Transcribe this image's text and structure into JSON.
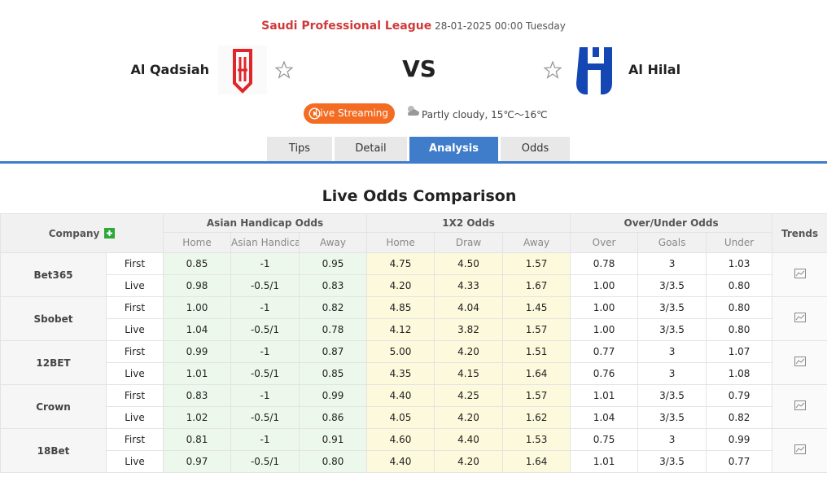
{
  "header": {
    "league": "Saudi Professional League",
    "datetime": "28-01-2025 00:00 Tuesday",
    "home_team": "Al Qadsiah",
    "away_team": "Al Hilal",
    "vs": "VS",
    "live_button": "Live Streaming",
    "weather": "Partly cloudy, 15℃～16℃"
  },
  "tabs": [
    "Tips",
    "Detail",
    "Analysis",
    "Odds"
  ],
  "active_tab": 2,
  "section_title": "Live Odds Comparison",
  "table": {
    "company_header": "Company",
    "trends_header": "Trends",
    "groups": [
      "Asian Handicap Odds",
      "1X2 Odds",
      "Over/Under Odds"
    ],
    "subheaders": [
      "Home",
      "Asian Handicap",
      "Away",
      "Home",
      "Draw",
      "Away",
      "Over",
      "Goals",
      "Under"
    ],
    "rows": [
      {
        "company": "Bet365",
        "lines": [
          {
            "type": "First",
            "values": [
              "0.85",
              "-1",
              "0.95",
              "4.75",
              "4.50",
              "1.57",
              "0.78",
              "3",
              "1.03"
            ]
          },
          {
            "type": "Live",
            "values": [
              "0.98",
              "-0.5/1",
              "0.83",
              "4.20",
              "4.33",
              "1.67",
              "1.00",
              "3/3.5",
              "0.80"
            ]
          }
        ]
      },
      {
        "company": "Sbobet",
        "lines": [
          {
            "type": "First",
            "values": [
              "1.00",
              "-1",
              "0.82",
              "4.85",
              "4.04",
              "1.45",
              "1.00",
              "3/3.5",
              "0.80"
            ]
          },
          {
            "type": "Live",
            "values": [
              "1.04",
              "-0.5/1",
              "0.78",
              "4.12",
              "3.82",
              "1.57",
              "1.00",
              "3/3.5",
              "0.80"
            ]
          }
        ]
      },
      {
        "company": "12BET",
        "lines": [
          {
            "type": "First",
            "values": [
              "0.99",
              "-1",
              "0.87",
              "5.00",
              "4.20",
              "1.51",
              "0.77",
              "3",
              "1.07"
            ]
          },
          {
            "type": "Live",
            "values": [
              "1.01",
              "-0.5/1",
              "0.85",
              "4.35",
              "4.15",
              "1.64",
              "0.76",
              "3",
              "1.08"
            ]
          }
        ]
      },
      {
        "company": "Crown",
        "lines": [
          {
            "type": "First",
            "values": [
              "0.83",
              "-1",
              "0.99",
              "4.40",
              "4.25",
              "1.57",
              "1.01",
              "3/3.5",
              "0.79"
            ]
          },
          {
            "type": "Live",
            "values": [
              "1.02",
              "-0.5/1",
              "0.86",
              "4.05",
              "4.20",
              "1.62",
              "1.04",
              "3/3.5",
              "0.82"
            ]
          }
        ]
      },
      {
        "company": "18Bet",
        "lines": [
          {
            "type": "First",
            "values": [
              "0.81",
              "-1",
              "0.91",
              "4.60",
              "4.40",
              "1.53",
              "0.75",
              "3",
              "0.99"
            ]
          },
          {
            "type": "Live",
            "values": [
              "0.97",
              "-0.5/1",
              "0.80",
              "4.40",
              "4.20",
              "1.64",
              "1.01",
              "3/3.5",
              "0.77"
            ]
          }
        ]
      }
    ]
  }
}
